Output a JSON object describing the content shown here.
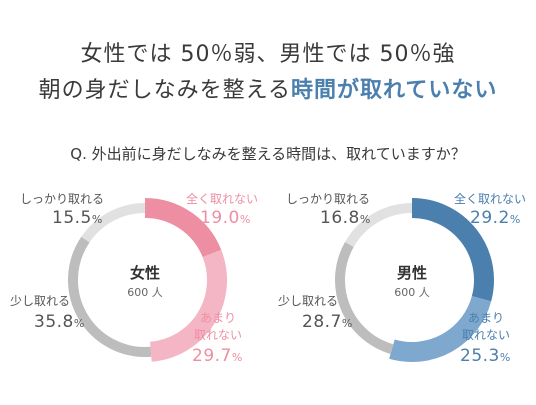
{
  "headline": {
    "line1": "女性では 50％弱、男性では 50％強",
    "line2_prefix": "朝の身だしなみを整える",
    "line2_highlight": "時間が取れていない"
  },
  "question": "Q. 外出前に身だしなみを整える時間は、取れていますか？",
  "colors": {
    "female_dark": "#ee8ea2",
    "female_light": "#f4b6c4",
    "male_dark": "#4a7fae",
    "male_light": "#7fa8cf",
    "grey_mid": "#bdbdbd",
    "grey_light": "#e1e1e1",
    "highlight_text": "#4a7fae"
  },
  "chart_data": [
    {
      "type": "pie",
      "title": "女性",
      "subtitle": "600 人",
      "categories": [
        "全く取れない",
        "あまり取れない",
        "少し取れる",
        "しっかり取れる"
      ],
      "values": [
        19.0,
        29.7,
        35.8,
        15.5
      ],
      "value_labels": [
        "19.0",
        "29.7",
        "35.8",
        "15.5"
      ],
      "unit": "%"
    },
    {
      "type": "pie",
      "title": "男性",
      "subtitle": "600 人",
      "categories": [
        "全く取れない",
        "あまり取れない",
        "少し取れる",
        "しっかり取れる"
      ],
      "values": [
        29.2,
        25.3,
        28.7,
        16.8
      ],
      "value_labels": [
        "29.2",
        "25.3",
        "28.7",
        "16.8"
      ],
      "unit": "%"
    }
  ],
  "labels": {
    "female": {
      "strong_line1": "しっかり取れる",
      "some_line1": "少し取れる",
      "none_line1": "全く取れない",
      "rarely_line1": "あまり",
      "rarely_line2": "取れない"
    },
    "male": {
      "strong_line1": "しっかり取れる",
      "some_line1": "少し取れる",
      "none_line1": "全く取れない",
      "rarely_line1": "あまり",
      "rarely_line2": "取れない"
    }
  }
}
